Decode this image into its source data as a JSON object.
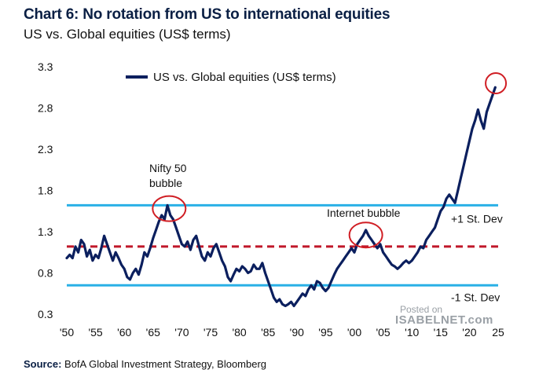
{
  "title": "Chart 6: No rotation from US to international equities",
  "subtitle": "US vs. Global equities (US$ terms)",
  "source_label": "Source:",
  "source_text": "BofA Global Investment Strategy, Bloomberg",
  "watermark": {
    "line1": "Posted on",
    "line2": "ISABELNET.com"
  },
  "colors": {
    "series": "#0b1f5e",
    "sd_band": "#2ab0e6",
    "mean": "#c0182a",
    "circle": "#d01e24"
  },
  "chart_data": {
    "type": "line",
    "series": [
      {
        "name": "US vs. Global equities (US$ terms)",
        "points": [
          [
            1950.0,
            0.98
          ],
          [
            1950.5,
            1.02
          ],
          [
            1951.0,
            0.98
          ],
          [
            1951.5,
            1.12
          ],
          [
            1952.0,
            1.05
          ],
          [
            1952.5,
            1.2
          ],
          [
            1953.0,
            1.15
          ],
          [
            1953.5,
            1.0
          ],
          [
            1954.0,
            1.08
          ],
          [
            1954.5,
            0.95
          ],
          [
            1955.0,
            1.02
          ],
          [
            1955.5,
            0.98
          ],
          [
            1956.0,
            1.1
          ],
          [
            1956.5,
            1.25
          ],
          [
            1957.0,
            1.15
          ],
          [
            1957.5,
            1.05
          ],
          [
            1958.0,
            0.95
          ],
          [
            1958.5,
            1.05
          ],
          [
            1959.0,
            0.98
          ],
          [
            1959.5,
            0.9
          ],
          [
            1960.0,
            0.85
          ],
          [
            1960.5,
            0.75
          ],
          [
            1961.0,
            0.72
          ],
          [
            1961.5,
            0.8
          ],
          [
            1962.0,
            0.85
          ],
          [
            1962.5,
            0.78
          ],
          [
            1963.0,
            0.9
          ],
          [
            1963.5,
            1.05
          ],
          [
            1964.0,
            1.0
          ],
          [
            1964.5,
            1.1
          ],
          [
            1965.0,
            1.22
          ],
          [
            1965.5,
            1.32
          ],
          [
            1966.0,
            1.42
          ],
          [
            1966.5,
            1.5
          ],
          [
            1967.0,
            1.45
          ],
          [
            1967.5,
            1.62
          ],
          [
            1968.0,
            1.5
          ],
          [
            1968.5,
            1.45
          ],
          [
            1969.0,
            1.35
          ],
          [
            1969.5,
            1.25
          ],
          [
            1970.0,
            1.15
          ],
          [
            1970.5,
            1.12
          ],
          [
            1971.0,
            1.18
          ],
          [
            1971.5,
            1.08
          ],
          [
            1972.0,
            1.2
          ],
          [
            1972.5,
            1.25
          ],
          [
            1973.0,
            1.12
          ],
          [
            1973.5,
            1.0
          ],
          [
            1974.0,
            0.95
          ],
          [
            1974.5,
            1.05
          ],
          [
            1975.0,
            1.0
          ],
          [
            1975.5,
            1.1
          ],
          [
            1976.0,
            1.15
          ],
          [
            1976.5,
            1.05
          ],
          [
            1977.0,
            0.95
          ],
          [
            1977.5,
            0.88
          ],
          [
            1978.0,
            0.75
          ],
          [
            1978.5,
            0.7
          ],
          [
            1979.0,
            0.78
          ],
          [
            1979.5,
            0.85
          ],
          [
            1980.0,
            0.82
          ],
          [
            1980.5,
            0.88
          ],
          [
            1981.0,
            0.85
          ],
          [
            1981.5,
            0.8
          ],
          [
            1982.0,
            0.82
          ],
          [
            1982.5,
            0.9
          ],
          [
            1983.0,
            0.85
          ],
          [
            1983.5,
            0.85
          ],
          [
            1984.0,
            0.92
          ],
          [
            1984.5,
            0.8
          ],
          [
            1985.0,
            0.7
          ],
          [
            1985.5,
            0.6
          ],
          [
            1986.0,
            0.5
          ],
          [
            1986.5,
            0.45
          ],
          [
            1987.0,
            0.48
          ],
          [
            1987.5,
            0.42
          ],
          [
            1988.0,
            0.4
          ],
          [
            1988.5,
            0.42
          ],
          [
            1989.0,
            0.45
          ],
          [
            1989.5,
            0.4
          ],
          [
            1990.0,
            0.45
          ],
          [
            1990.5,
            0.5
          ],
          [
            1991.0,
            0.55
          ],
          [
            1991.5,
            0.52
          ],
          [
            1992.0,
            0.6
          ],
          [
            1992.5,
            0.65
          ],
          [
            1993.0,
            0.6
          ],
          [
            1993.5,
            0.7
          ],
          [
            1994.0,
            0.68
          ],
          [
            1994.5,
            0.62
          ],
          [
            1995.0,
            0.58
          ],
          [
            1995.5,
            0.62
          ],
          [
            1996.0,
            0.7
          ],
          [
            1996.5,
            0.78
          ],
          [
            1997.0,
            0.85
          ],
          [
            1997.5,
            0.9
          ],
          [
            1998.0,
            0.95
          ],
          [
            1998.5,
            1.0
          ],
          [
            1999.0,
            1.05
          ],
          [
            1999.5,
            1.1
          ],
          [
            2000.0,
            1.05
          ],
          [
            2000.5,
            1.15
          ],
          [
            2001.0,
            1.2
          ],
          [
            2001.5,
            1.25
          ],
          [
            2002.0,
            1.32
          ],
          [
            2002.5,
            1.25
          ],
          [
            2003.0,
            1.2
          ],
          [
            2003.5,
            1.15
          ],
          [
            2004.0,
            1.1
          ],
          [
            2004.5,
            1.15
          ],
          [
            2005.0,
            1.05
          ],
          [
            2005.5,
            1.0
          ],
          [
            2006.0,
            0.95
          ],
          [
            2006.5,
            0.9
          ],
          [
            2007.0,
            0.88
          ],
          [
            2007.5,
            0.85
          ],
          [
            2008.0,
            0.88
          ],
          [
            2008.5,
            0.92
          ],
          [
            2009.0,
            0.95
          ],
          [
            2009.5,
            0.92
          ],
          [
            2010.0,
            0.95
          ],
          [
            2010.5,
            1.0
          ],
          [
            2011.0,
            1.05
          ],
          [
            2011.5,
            1.12
          ],
          [
            2012.0,
            1.1
          ],
          [
            2012.5,
            1.2
          ],
          [
            2013.0,
            1.25
          ],
          [
            2013.5,
            1.3
          ],
          [
            2014.0,
            1.35
          ],
          [
            2014.5,
            1.45
          ],
          [
            2015.0,
            1.55
          ],
          [
            2015.5,
            1.6
          ],
          [
            2016.0,
            1.7
          ],
          [
            2016.5,
            1.75
          ],
          [
            2017.0,
            1.7
          ],
          [
            2017.5,
            1.65
          ],
          [
            2018.0,
            1.8
          ],
          [
            2018.5,
            1.95
          ],
          [
            2019.0,
            2.1
          ],
          [
            2019.5,
            2.25
          ],
          [
            2020.0,
            2.4
          ],
          [
            2020.5,
            2.55
          ],
          [
            2021.0,
            2.65
          ],
          [
            2021.5,
            2.78
          ],
          [
            2022.0,
            2.65
          ],
          [
            2022.5,
            2.55
          ],
          [
            2023.0,
            2.75
          ],
          [
            2023.5,
            2.85
          ],
          [
            2024.0,
            2.95
          ],
          [
            2024.5,
            3.05
          ]
        ]
      }
    ],
    "reference_lines": [
      {
        "name": "+1 St. Dev",
        "y": 1.62
      },
      {
        "name": "mean",
        "y": 1.12
      },
      {
        "name": "-1 St. Dev",
        "y": 0.65
      }
    ],
    "annotations": [
      {
        "text_lines": [
          "Nifty 50",
          "bubble"
        ],
        "circle_at": [
          1967.8,
          1.58
        ]
      },
      {
        "text_lines": [
          "Internet bubble"
        ],
        "circle_at": [
          2002.0,
          1.26
        ]
      },
      {
        "text_lines": [],
        "circle_at": [
          2024.6,
          3.1
        ]
      }
    ],
    "y_ticks": [
      "3.3",
      "2.8",
      "2.3",
      "1.8",
      "1.3",
      "0.8",
      "0.3"
    ],
    "y_tick_values": [
      3.3,
      2.8,
      2.3,
      1.8,
      1.3,
      0.8,
      0.3
    ],
    "x_ticks": [
      "'50",
      "'55",
      "'60",
      "'65",
      "'70",
      "'75",
      "'80",
      "'85",
      "'90",
      "'95",
      "'00",
      "'05",
      "'10",
      "'15",
      "'20",
      "25"
    ],
    "x_tick_values": [
      1950,
      1955,
      1960,
      1965,
      1970,
      1975,
      1980,
      1985,
      1990,
      1995,
      2000,
      2005,
      2010,
      2015,
      2020,
      2025
    ],
    "xlim": [
      1950,
      2025
    ],
    "ylim": [
      0.3,
      3.3
    ],
    "legend_position": "top-left",
    "grid": false
  }
}
